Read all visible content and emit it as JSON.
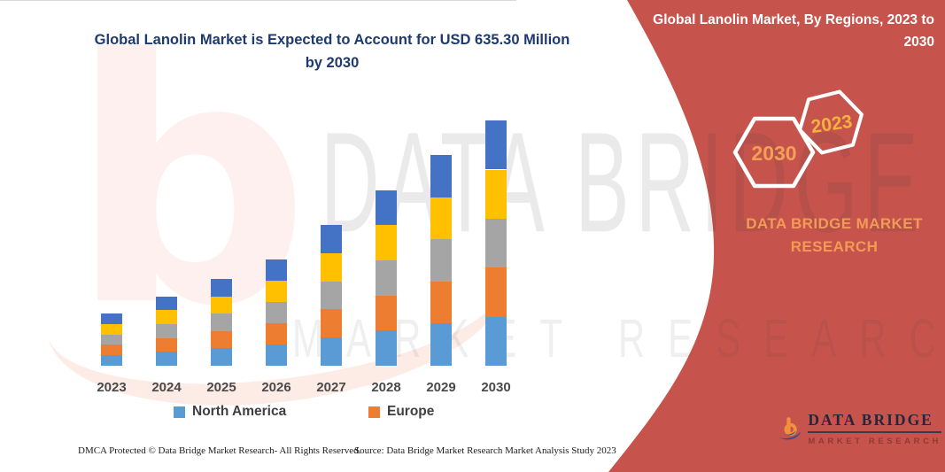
{
  "chart_data": {
    "type": "bar",
    "stacked": true,
    "title": "Global Lanolin Market is Expected to Account for USD 635.30 Million by 2030",
    "unit": "USD Million",
    "categories": [
      "2023",
      "2024",
      "2025",
      "2026",
      "2027",
      "2028",
      "2029",
      "2030"
    ],
    "series": [
      {
        "name": "North America",
        "color": "#5B9BD5",
        "values": [
          27,
          36,
          45,
          55,
          73,
          91,
          109,
          127
        ]
      },
      {
        "name": "Europe",
        "color": "#ED7D31",
        "values": [
          27,
          36,
          45,
          55,
          73,
          91,
          109,
          127
        ]
      },
      {
        "name": "unlabeled-region-gray",
        "color": "#A5A5A5",
        "values": [
          27,
          36,
          45,
          55,
          73,
          91,
          109,
          127
        ]
      },
      {
        "name": "unlabeled-region-yellow",
        "color": "#FFC000",
        "values": [
          27,
          36,
          45,
          55,
          73,
          91,
          109,
          127
        ]
      },
      {
        "name": "unlabeled-region-blue",
        "color": "#4472C4",
        "values": [
          27,
          36,
          45,
          55,
          73,
          91,
          109,
          127
        ]
      }
    ],
    "totals_estimated": [
      135,
      180,
      225,
      275,
      365,
      455,
      545,
      635.3
    ],
    "ylim": [
      0,
      660
    ],
    "y_axis_visible": false,
    "x_axis_line": true,
    "legend": {
      "position": "bottom",
      "entries": [
        {
          "label": "North America",
          "color": "#5B9BD5"
        },
        {
          "label": "Europe",
          "color": "#ED7D31"
        }
      ]
    }
  },
  "sidebar": {
    "title": "Global Lanolin Market, By Regions, 2023 to 2030",
    "background_color": "#C6544D",
    "hexagons": [
      {
        "label": "2030",
        "text_color": "#F2A055"
      },
      {
        "label": "2023",
        "text_color": "#F6B13C"
      }
    ],
    "brand_text": "DATA BRIDGE MARKET RESEARCH",
    "logo": {
      "line1": "DATA BRIDGE",
      "line2": "MARKET RESEARCH"
    }
  },
  "watermark": {
    "big_text": "DATA BRIDGE",
    "row_text": "MARKET RESEARCH",
    "letter_b": "b"
  },
  "footer": {
    "left": "DMCA Protected © Data Bridge Market Research-  All Rights Reserved.",
    "right": "Source: Data Bridge Market Research  Market Analysis Study 2023"
  }
}
